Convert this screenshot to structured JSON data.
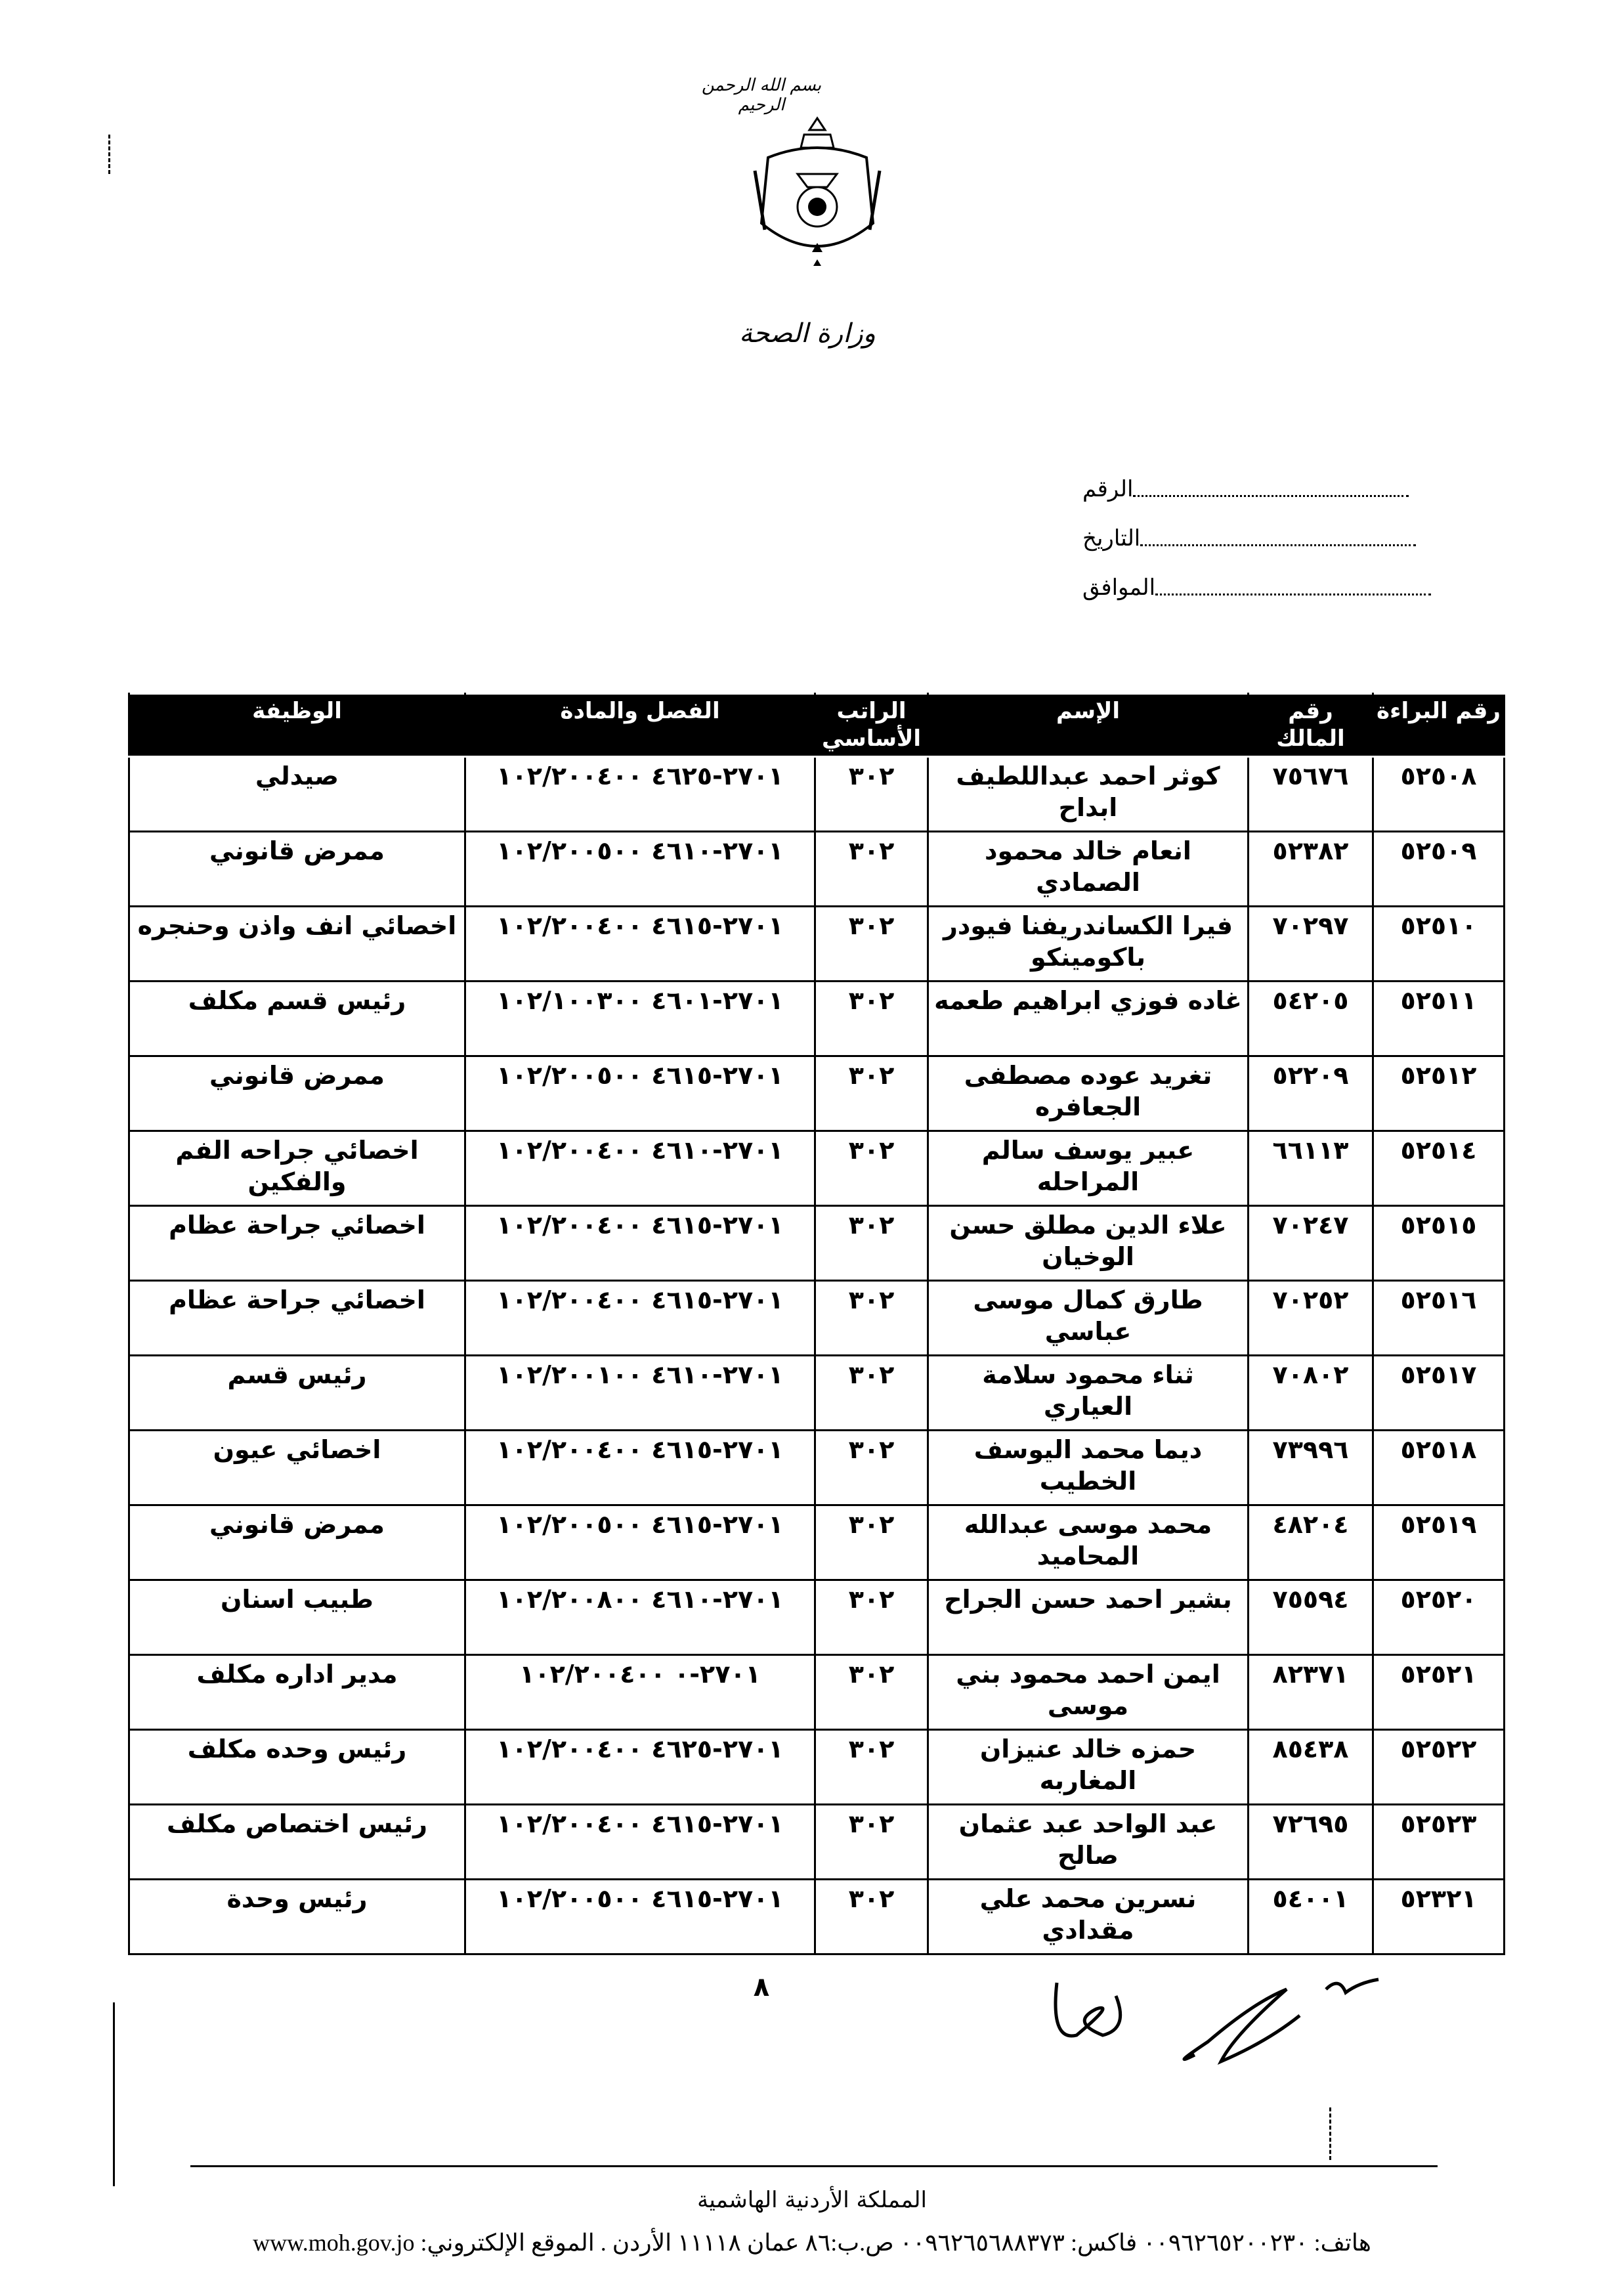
{
  "header": {
    "bismillah": "بسم الله الرحمن الرحيم",
    "ministry": "وزارة الصحة",
    "emblem_icon": "jordan-coat-of-arms-icon"
  },
  "reference_fields": [
    {
      "label": "الرقم"
    },
    {
      "label": "التاريخ"
    },
    {
      "label": "الموافق"
    }
  ],
  "table": {
    "columns": [
      "رقم البراءة",
      "رقم المالك",
      "الإسم",
      "الراتب الأساسي",
      "الفصل والمادة",
      "الوظيفة"
    ],
    "rows": [
      [
        "٥٢٥٠٨",
        "٧٥٦٧٦",
        "كوثر احمد عبداللطيف ابداح",
        "٣٠٢",
        "٢٧٠١-٤٦٢٥ ١٠٢/٢٠٠٤٠٠",
        "صيدلي"
      ],
      [
        "٥٢٥٠٩",
        "٥٢٣٨٢",
        "انعام خالد محمود الصمادي",
        "٣٠٢",
        "٢٧٠١-٤٦١٠ ١٠٢/٢٠٠٥٠٠",
        "ممرض قانوني"
      ],
      [
        "٥٢٥١٠",
        "٧٠٢٩٧",
        "فيرا الكساندريفنا فيودر باكومينكو",
        "٣٠٢",
        "٢٧٠١-٤٦١٥ ١٠٢/٢٠٠٤٠٠",
        "اخصائي انف واذن وحنجره"
      ],
      [
        "٥٢٥١١",
        "٥٤٢٠٥",
        "غاده فوزي ابراهيم طعمه",
        "٣٠٢",
        "٢٧٠١-٤٦٠١ ١٠٢/١٠٠٣٠٠",
        "رئيس قسم مكلف"
      ],
      [
        "٥٢٥١٢",
        "٥٢٢٠٩",
        "تغريد عوده مصطفى الجعافره",
        "٣٠٢",
        "٢٧٠١-٤٦١٥ ١٠٢/٢٠٠٥٠٠",
        "ممرض قانوني"
      ],
      [
        "٥٢٥١٤",
        "٦٦١١٣",
        "عبير يوسف سالم المراحله",
        "٣٠٢",
        "٢٧٠١-٤٦١٠ ١٠٢/٢٠٠٤٠٠",
        "اخصائي جراحه الفم والفكين"
      ],
      [
        "٥٢٥١٥",
        "٧٠٢٤٧",
        "علاء الدين مطلق حسن الوخيان",
        "٣٠٢",
        "٢٧٠١-٤٦١٥ ١٠٢/٢٠٠٤٠٠",
        "اخصائي جراحة عظام"
      ],
      [
        "٥٢٥١٦",
        "٧٠٢٥٢",
        "طارق كمال موسى عباسي",
        "٣٠٢",
        "٢٧٠١-٤٦١٥ ١٠٢/٢٠٠٤٠٠",
        "اخصائي جراحة عظام"
      ],
      [
        "٥٢٥١٧",
        "٧٠٨٠٢",
        "ثناء محمود سلامة العياري",
        "٣٠٢",
        "٢٧٠١-٤٦١٠ ١٠٢/٢٠٠١٠٠",
        "رئيس قسم"
      ],
      [
        "٥٢٥١٨",
        "٧٣٩٩٦",
        "ديما محمد اليوسف الخطيب",
        "٣٠٢",
        "٢٧٠١-٤٦١٥ ١٠٢/٢٠٠٤٠٠",
        "اخصائي عيون"
      ],
      [
        "٥٢٥١٩",
        "٤٨٢٠٤",
        "محمد موسى عبدالله المحاميد",
        "٣٠٢",
        "٢٧٠١-٤٦١٥ ١٠٢/٢٠٠٥٠٠",
        "ممرض قانوني"
      ],
      [
        "٥٢٥٢٠",
        "٧٥٥٩٤",
        "بشير احمد حسن الجراح",
        "٣٠٢",
        "٢٧٠١-٤٦١٠ ١٠٢/٢٠٠٨٠٠",
        "طبيب اسنان"
      ],
      [
        "٥٢٥٢١",
        "٨٢٣٧١",
        "ايمن احمد محمود بني موسى",
        "٣٠٢",
        "٢٧٠١-٠ ١٠٢/٢٠٠٤٠٠",
        "مدير اداره مكلف"
      ],
      [
        "٥٢٥٢٢",
        "٨٥٤٣٨",
        "حمزه خالد عنيزان المغاربه",
        "٣٠٢",
        "٢٧٠١-٤٦٢٥ ١٠٢/٢٠٠٤٠٠",
        "رئيس وحده مكلف"
      ],
      [
        "٥٢٥٢٣",
        "٧٢٦٩٥",
        "عبد الواحد عبد عثمان صالح",
        "٣٠٢",
        "٢٧٠١-٤٦١٥ ١٠٢/٢٠٠٤٠٠",
        "رئيس اختصاص مكلف"
      ],
      [
        "٥٢٣٢١",
        "٥٤٠٠١",
        "نسرين محمد علي مقدادي",
        "٣٠٢",
        "٢٧٠١-٤٦١٥ ١٠٢/٢٠٠٥٠٠",
        "رئيس وحدة"
      ]
    ]
  },
  "page_number": "٨",
  "footer": {
    "kingdom": "المملكة الأردنية الهاشمية",
    "contact": "هاتف: ٠٠٩٦٢٦٥٢٠٠٢٣٠ فاكس: ٠٠٩٦٢٦٥٦٨٨٣٧٣ ص.ب:٨٦ عمان ١١١١٨ الأردن . الموقع الإلكتروني: www.moh.gov.jo"
  }
}
